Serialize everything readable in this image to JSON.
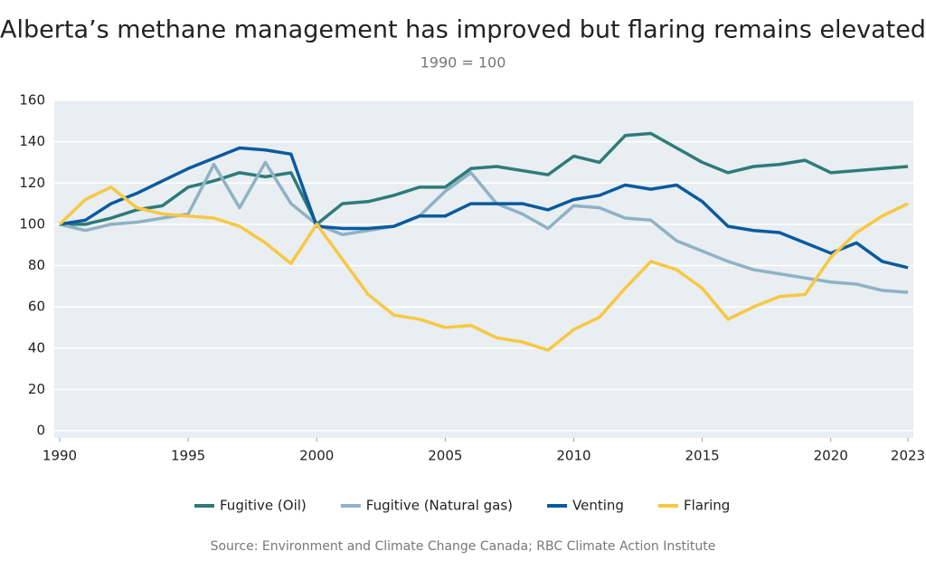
{
  "chart_data": {
    "type": "line",
    "title": "Alberta’s methane management has improved but flaring remains elevated",
    "subtitle": "1990 = 100",
    "source": "Source: Environment and Climate Change Canada; RBC Climate Action Institute",
    "x": [
      1990,
      1991,
      1992,
      1993,
      1994,
      1995,
      1996,
      1997,
      1998,
      1999,
      2000,
      2001,
      2002,
      2003,
      2004,
      2005,
      2006,
      2007,
      2008,
      2009,
      2010,
      2011,
      2012,
      2013,
      2014,
      2015,
      2016,
      2017,
      2018,
      2019,
      2020,
      2021,
      2022,
      2023
    ],
    "xlim": [
      1990,
      2023
    ],
    "xticks": [
      1990,
      1995,
      2000,
      2005,
      2010,
      2015,
      2020,
      2023
    ],
    "ylim": [
      0,
      160
    ],
    "yticks": [
      0,
      20,
      40,
      60,
      80,
      100,
      120,
      140,
      160
    ],
    "grid": true,
    "series": [
      {
        "name": "Fugitive (Oil)",
        "color": "#2e7b78",
        "values": [
          100,
          100,
          103,
          107,
          109,
          118,
          121,
          125,
          123,
          125,
          100,
          110,
          111,
          114,
          118,
          118,
          127,
          128,
          126,
          124,
          133,
          130,
          143,
          144,
          137,
          130,
          125,
          128,
          129,
          131,
          125,
          126,
          127,
          128
        ]
      },
      {
        "name": "Fugitive (Natural gas)",
        "color": "#8fb2c4",
        "values": [
          100,
          97,
          100,
          101,
          103,
          105,
          129,
          108,
          130,
          110,
          100,
          95,
          97,
          99,
          104,
          116,
          125,
          110,
          105,
          98,
          109,
          108,
          103,
          102,
          92,
          87,
          82,
          78,
          76,
          74,
          72,
          71,
          68,
          67
        ]
      },
      {
        "name": "Venting",
        "color": "#0a5a9e",
        "values": [
          100,
          102,
          110,
          115,
          121,
          127,
          132,
          137,
          136,
          134,
          99,
          98,
          98,
          99,
          104,
          104,
          110,
          110,
          110,
          107,
          112,
          114,
          119,
          117,
          119,
          111,
          99,
          97,
          96,
          91,
          86,
          91,
          82,
          79
        ]
      },
      {
        "name": "Flaring",
        "color": "#f7c843",
        "values": [
          100,
          112,
          118,
          108,
          105,
          104,
          103,
          99,
          91,
          81,
          100,
          83,
          66,
          56,
          54,
          50,
          51,
          45,
          43,
          39,
          49,
          55,
          69,
          82,
          78,
          69,
          54,
          60,
          65,
          66,
          84,
          96,
          104,
          110
        ]
      }
    ]
  }
}
